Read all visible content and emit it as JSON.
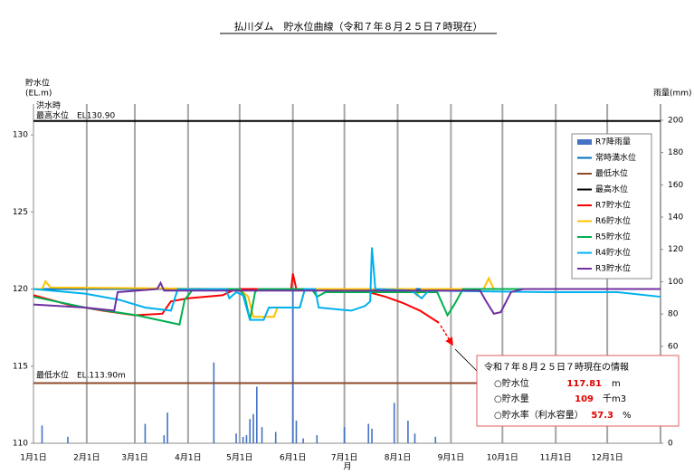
{
  "chart_data": {
    "type": "line",
    "title": "払川ダム　貯水位曲線（令和７年８月２５日７時現在）",
    "y_label": [
      "貯水位",
      "(EL.m)"
    ],
    "y2_label": "雨量(mm)",
    "x_label": "月",
    "annotations": {
      "max_line": [
        "洪水時",
        "最高水位　EL130.90"
      ],
      "min_line": "最低水位　EL.113.90m"
    },
    "xlim": [
      0,
      365
    ],
    "xticks": [
      {
        "value": 0,
        "label": "1月1日"
      },
      {
        "value": 31,
        "label": "2月1日"
      },
      {
        "value": 59,
        "label": "3月1日"
      },
      {
        "value": 90,
        "label": "4月1日"
      },
      {
        "value": 120,
        "label": "5月1日"
      },
      {
        "value": 151,
        "label": "6月1日"
      },
      {
        "value": 181,
        "label": "7月1日"
      },
      {
        "value": 212,
        "label": "8月1日"
      },
      {
        "value": 243,
        "label": "9月1日"
      },
      {
        "value": 273,
        "label": "10月1日"
      },
      {
        "value": 304,
        "label": "11月1日"
      },
      {
        "value": 334,
        "label": "12月1日"
      }
    ],
    "ylim": [
      110,
      132
    ],
    "yticks": [
      110,
      115,
      120,
      125,
      130
    ],
    "y2lim": [
      0,
      210
    ],
    "y2ticks": [
      0,
      20,
      40,
      60,
      80,
      100,
      120,
      140,
      160,
      180,
      200
    ],
    "grid": true,
    "series": [
      {
        "name": "R7降雨量",
        "type": "bar",
        "axis": "y2",
        "color": "#4472c4",
        "x": [
          5,
          20,
          65,
          76,
          78,
          105,
          118,
          122,
          124,
          126,
          128,
          130,
          133,
          141,
          151,
          153,
          157,
          165,
          181,
          195,
          197,
          210,
          218,
          222,
          234
        ],
        "values": [
          11,
          4,
          12,
          5,
          19,
          50,
          6,
          4,
          5,
          15,
          18,
          35,
          10,
          7,
          95,
          14,
          3,
          5,
          10,
          12,
          9,
          25,
          14,
          6,
          4
        ]
      },
      {
        "name": "常時満水位",
        "color": "#0070c0",
        "x": [
          0,
          365
        ],
        "values": [
          120,
          120
        ]
      },
      {
        "name": "最低水位",
        "color": "#8b4a2b",
        "x": [
          0,
          365
        ],
        "values": [
          113.9,
          113.9
        ]
      },
      {
        "name": "最高水位",
        "color": "#000000",
        "x": [
          0,
          365
        ],
        "values": [
          130.9,
          130.9
        ]
      },
      {
        "name": "R7貯水位",
        "color": "#ff0000",
        "x": [
          0,
          20,
          40,
          59,
          75,
          80,
          90,
          110,
          118,
          150,
          151,
          153,
          185,
          195,
          205,
          215,
          225,
          236
        ],
        "values": [
          119.6,
          119.0,
          118.6,
          118.3,
          118.4,
          119.2,
          119.4,
          119.6,
          120,
          120,
          121,
          120,
          120,
          119.8,
          119.5,
          119.1,
          118.6,
          117.81
        ]
      },
      {
        "name": "R6貯水位",
        "color": "#ffc000",
        "x": [
          0,
          5,
          7,
          10,
          120,
          125,
          128,
          140,
          142,
          155,
          158,
          222,
          223,
          226,
          262,
          265,
          268,
          365
        ],
        "values": [
          120,
          120,
          120.5,
          120.1,
          120,
          119.5,
          118.2,
          118.2,
          118.8,
          118.8,
          120,
          120,
          119.6,
          120,
          120,
          120.7,
          120,
          120
        ]
      },
      {
        "name": "R5貯水位",
        "color": "#00b050",
        "x": [
          0,
          30,
          60,
          85,
          88,
          93,
          120,
          123,
          126,
          129,
          131,
          162,
          165,
          170,
          235,
          241,
          245,
          250,
          365
        ],
        "values": [
          119.5,
          118.8,
          118.3,
          117.7,
          119.3,
          120,
          120,
          119.5,
          118.0,
          119.8,
          120,
          120,
          119.5,
          119.8,
          119.8,
          118.3,
          119,
          120,
          120
        ]
      },
      {
        "name": "R4貯水位",
        "color": "#00b0f0",
        "x": [
          0,
          30,
          50,
          65,
          80,
          84,
          112,
          114,
          118,
          122,
          126,
          134,
          137,
          155,
          158,
          164,
          166,
          185,
          193,
          196,
          197,
          199,
          220,
          226,
          230,
          300,
          340,
          365
        ],
        "values": [
          120,
          119.7,
          119.3,
          118.8,
          118.6,
          120,
          120,
          119.4,
          119.8,
          119.6,
          118.0,
          118.0,
          118.8,
          118.8,
          120,
          120,
          118.8,
          118.6,
          118.9,
          119.2,
          122.7,
          120,
          119.9,
          119.4,
          119.9,
          119.8,
          119.8,
          119.5
        ]
      },
      {
        "name": "R3貯水位",
        "color": "#7030a0",
        "x": [
          0,
          30,
          47,
          49,
          72,
          74,
          76,
          260,
          263,
          268,
          272,
          278,
          285,
          365
        ],
        "values": [
          119,
          118.8,
          118.6,
          119.8,
          120,
          120.4,
          119.9,
          119.9,
          119.3,
          118.4,
          118.5,
          119.8,
          120,
          120
        ]
      }
    ],
    "info": {
      "title": "令和７年８月２５日７時現在の情報",
      "rows": [
        {
          "label": "○貯水位",
          "value": "117.81",
          "unit": "m"
        },
        {
          "label": "○貯水量",
          "value": "109",
          "unit": "千m3"
        },
        {
          "label": "○貯水率（利水容量）",
          "value": "57.3",
          "unit": "%"
        }
      ]
    }
  }
}
